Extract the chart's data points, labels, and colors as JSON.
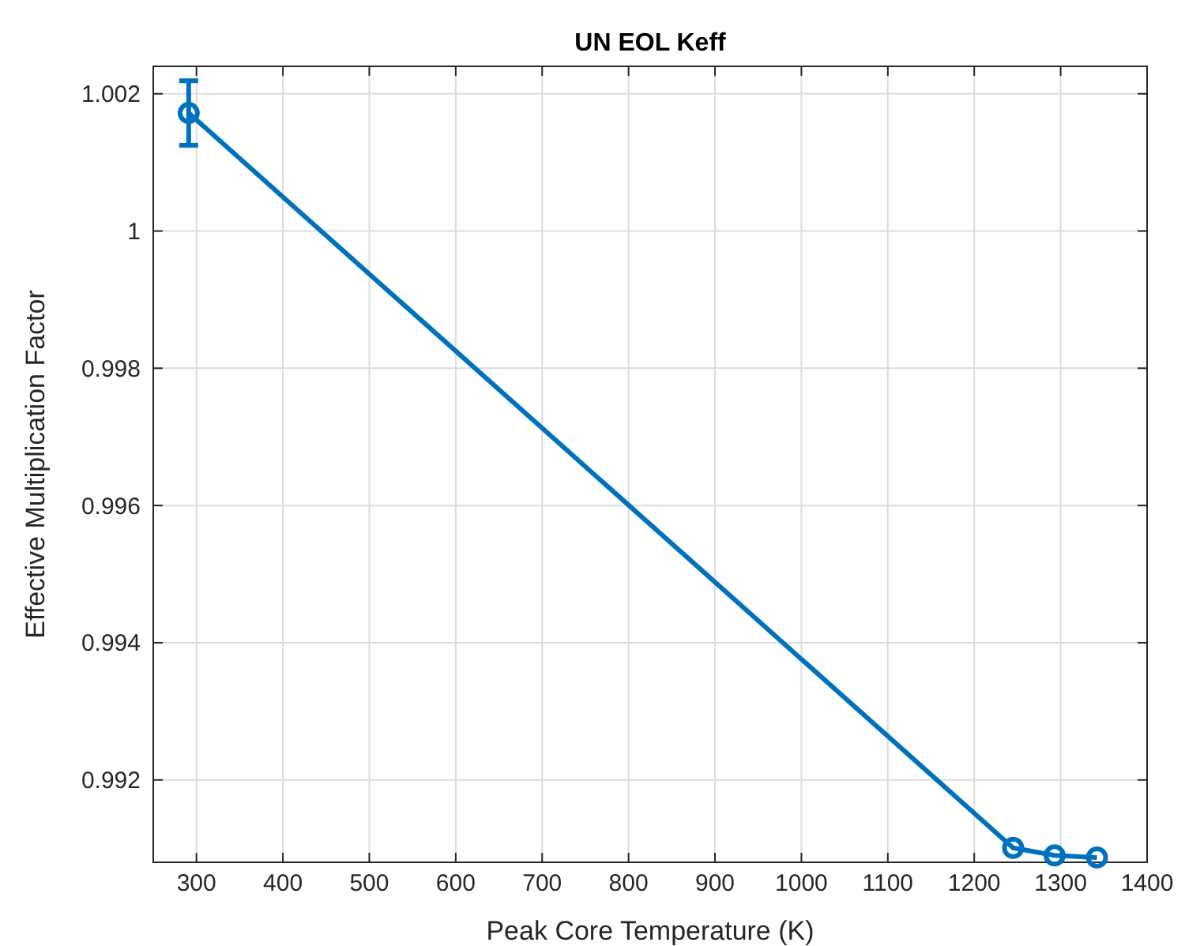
{
  "chart_data": {
    "type": "line",
    "title": "UN EOL Keff",
    "xlabel": "Peak Core Temperature (K)",
    "ylabel": "Effective Multiplication Factor",
    "x": [
      291,
      1245,
      1293,
      1342
    ],
    "series": [
      {
        "color": "#0072bd",
        "values": [
          1.00172,
          0.99101,
          0.9909,
          0.99087
        ],
        "errors": [
          0.00047,
          null,
          null,
          null
        ]
      }
    ],
    "xlim": [
      250,
      1400
    ],
    "xticks": [
      300,
      400,
      500,
      600,
      700,
      800,
      900,
      1000,
      1100,
      1200,
      1300,
      1400
    ],
    "ylim": [
      0.9908,
      1.0024
    ],
    "yticks": [
      {
        "value": 0.992,
        "label": "0.992"
      },
      {
        "value": 0.994,
        "label": "0.994"
      },
      {
        "value": 0.996,
        "label": "0.996"
      },
      {
        "value": 0.998,
        "label": "0.998"
      },
      {
        "value": 1,
        "label": "1"
      },
      {
        "value": 1.002,
        "label": "1.002"
      }
    ],
    "grid": true,
    "marker": "circle",
    "line_style": "solid"
  }
}
